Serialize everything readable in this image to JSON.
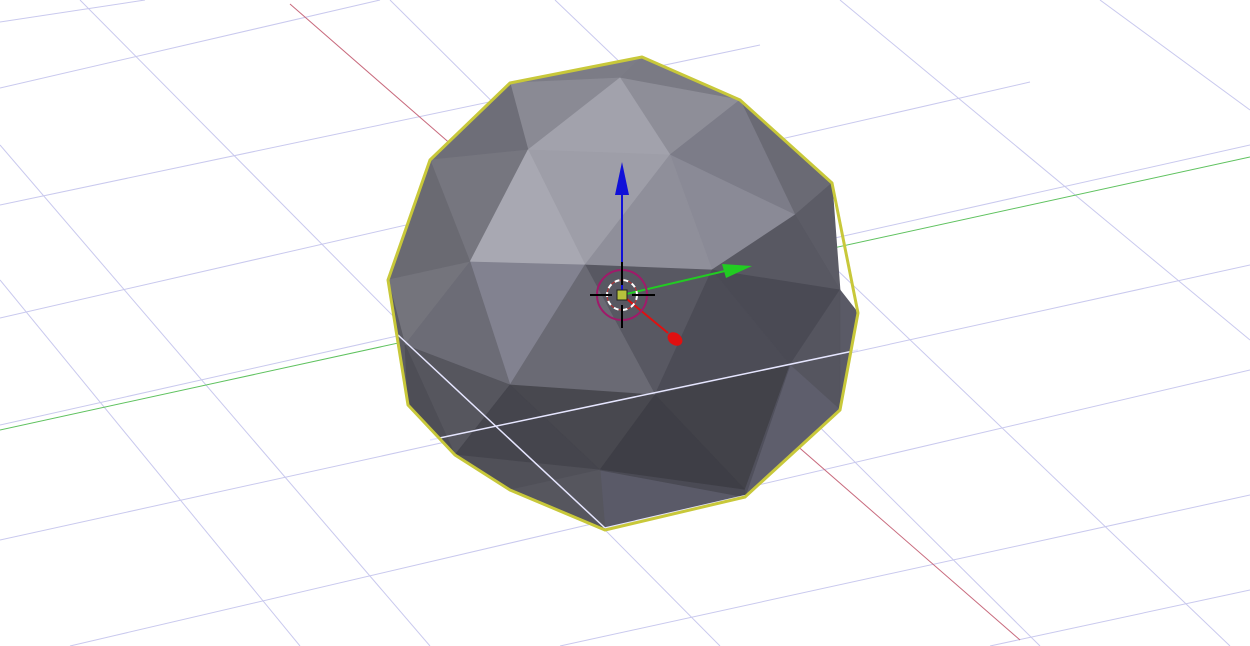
{
  "viewport": {
    "background_color": "#ffffff",
    "grid_color": "#c9c9ee",
    "x_axis_color": "#c86a7d",
    "y_axis_color": "#5fc25f"
  },
  "object": {
    "type": "icosphere",
    "selected": true,
    "outline_color": "#c8c83a",
    "face_color_light": "#9c9ca8",
    "face_color_dark": "#3e3e46",
    "edge_highlight_color": "#e6e6ff"
  },
  "gizmo": {
    "z_handle_color": "#1010d8",
    "y_handle_color": "#22cc22",
    "x_handle_color": "#e01010",
    "center_ring_color": "#a01a6a",
    "center_dot_color": "#b6c23c"
  },
  "icons": [
    "3d-cursor-icon",
    "translate-gizmo-icon"
  ]
}
